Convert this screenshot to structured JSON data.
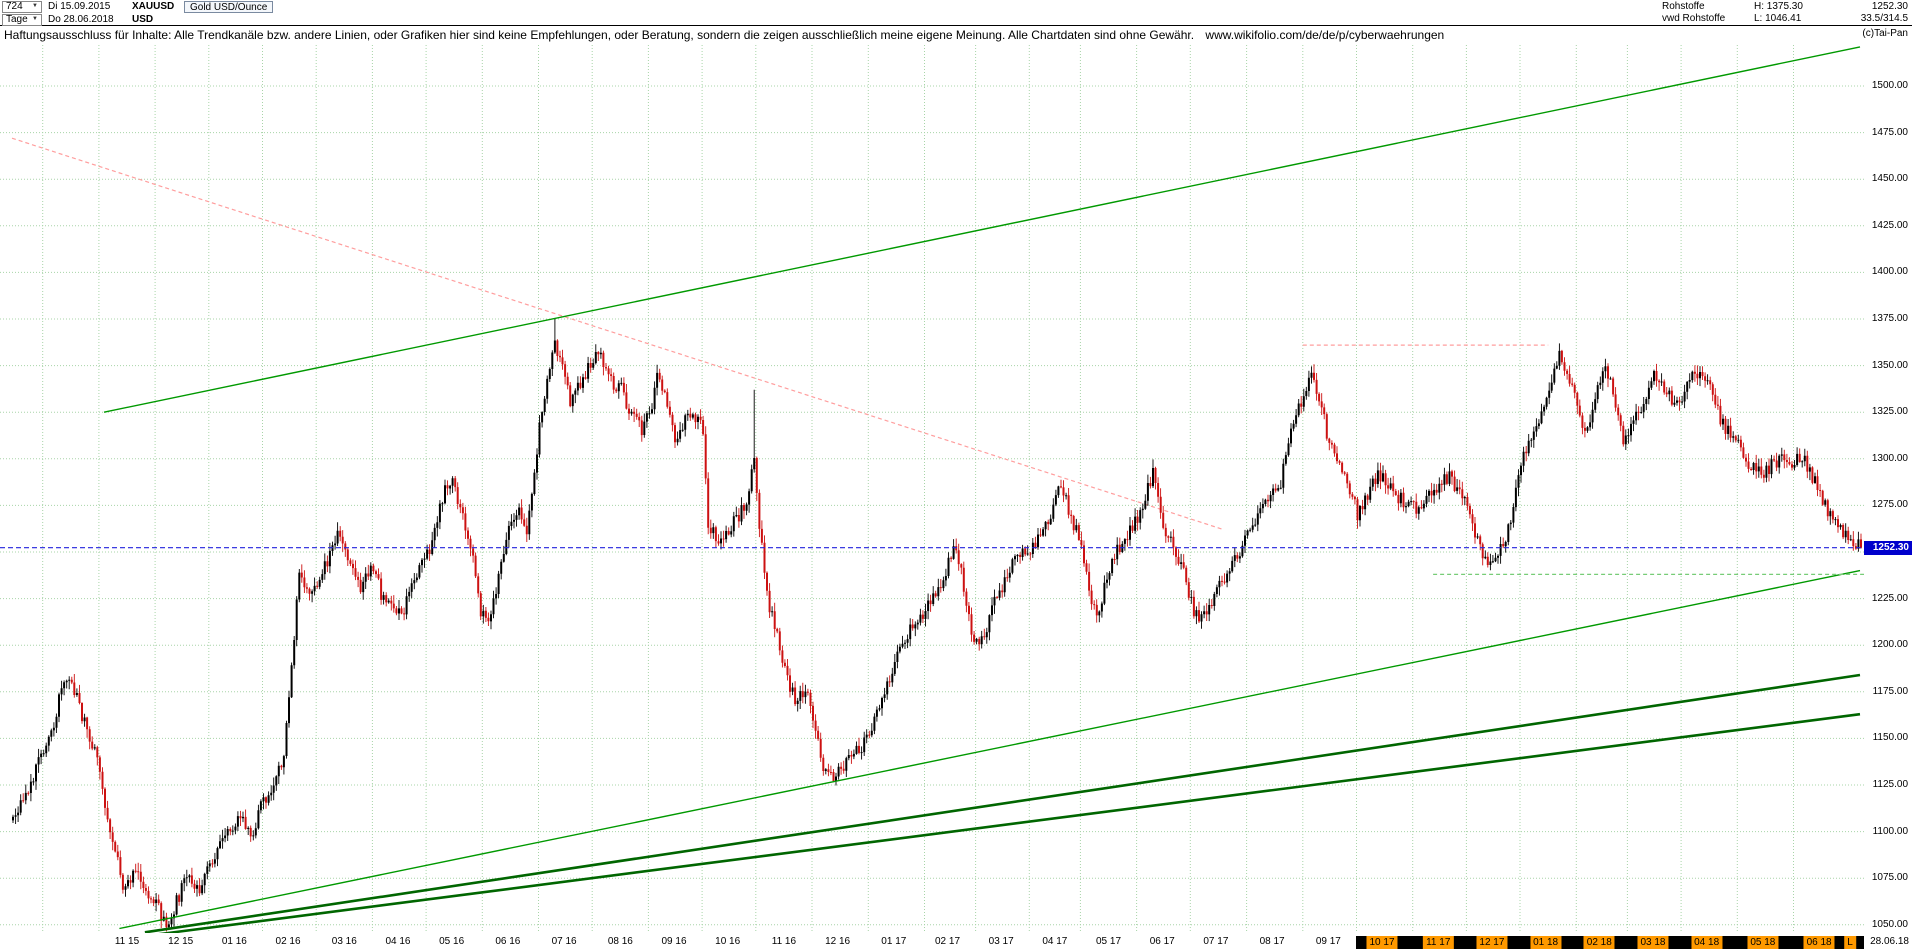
{
  "toolbar": {
    "bars_count": "724",
    "start_date": "Di 15.09.2015",
    "timeframe": "Tage",
    "end_date": "Do 28.06.2018",
    "symbol": "XAUUSD",
    "currency": "USD",
    "instrument_name": "Gold USD/Ounce"
  },
  "info": {
    "category": "Rohstoffe",
    "provider": "vwd Rohstoffe",
    "high_label": "H: 1375.30",
    "low_label": "L: 1046.41",
    "last": "1252.30",
    "stats": "33.5/314.5",
    "copyright": "(c)Tai-Pan"
  },
  "disclaimer": {
    "text": "Haftungsausschluss für Inhalte: Alle Trendkanäle bzw. andere Linien, oder Grafiken hier sind keine Empfehlungen, oder Beratung, sondern die zeigen ausschließlich meine eigene Meinung. Alle Chartdaten sind ohne Gewähr.",
    "url": "www.wikifolio.com/de/de/p/cyberwaehrungen"
  },
  "chart_data": {
    "type": "candlestick",
    "title": "Gold USD/Ounce (XAUUSD)",
    "period": {
      "bars": 724,
      "from": "15.09.2015",
      "to": "28.06.2018",
      "timeframe": "Tage"
    },
    "high": 1375.3,
    "low": 1046.41,
    "last": 1252.3,
    "last_label": "1252.30",
    "y_axis": {
      "min": 1050,
      "max": 1500,
      "step": 25,
      "ticks": [
        [
          1500,
          "1500.00",
          1
        ],
        [
          1475,
          "1475.00",
          1
        ],
        [
          1450,
          "1450.00",
          1
        ],
        [
          1425,
          "1425.00",
          1
        ],
        [
          1400,
          "1400.00",
          1
        ],
        [
          1375,
          "1375.00",
          1
        ],
        [
          1350,
          "1350.00",
          1
        ],
        [
          1325,
          "1325.00",
          1
        ],
        [
          1300,
          "1300.00",
          1
        ],
        [
          1275,
          "1275.00",
          1
        ],
        [
          1250,
          "1250.00",
          0
        ],
        [
          1225,
          "1225.00",
          1
        ],
        [
          1200,
          "1200.00",
          1
        ],
        [
          1175,
          "1175.00",
          1
        ],
        [
          1150,
          "1150.00",
          1
        ],
        [
          1125,
          "1125.00",
          1
        ],
        [
          1100,
          "1100.00",
          1
        ],
        [
          1075,
          "1075.00",
          1
        ],
        [
          1050,
          "1050.00",
          1
        ]
      ]
    },
    "x_axis": {
      "labels": [
        [
          "11 15",
          45,
          0
        ],
        [
          "12 15",
          66,
          0
        ],
        [
          "01 16",
          87,
          0
        ],
        [
          "02 16",
          108,
          0
        ],
        [
          "03 16",
          130,
          0
        ],
        [
          "04 16",
          151,
          0
        ],
        [
          "05 16",
          172,
          0
        ],
        [
          "06 16",
          194,
          0
        ],
        [
          "07 16",
          216,
          0
        ],
        [
          "08 16",
          238,
          0
        ],
        [
          "09 16",
          259,
          0
        ],
        [
          "10 16",
          280,
          0
        ],
        [
          "11 16",
          302,
          0
        ],
        [
          "12 16",
          323,
          0
        ],
        [
          "01 17",
          345,
          0
        ],
        [
          "02 17",
          366,
          0
        ],
        [
          "03 17",
          387,
          0
        ],
        [
          "04 17",
          408,
          0
        ],
        [
          "05 17",
          429,
          0
        ],
        [
          "06 17",
          450,
          0
        ],
        [
          "07 17",
          471,
          0
        ],
        [
          "08 17",
          493,
          0
        ],
        [
          "09 17",
          515,
          0
        ],
        [
          "10 17",
          536,
          1
        ],
        [
          "11 17",
          558,
          1
        ],
        [
          "12 17",
          579,
          1
        ],
        [
          "01 18",
          600,
          1
        ],
        [
          "02 18",
          621,
          1
        ],
        [
          "03 18",
          642,
          1
        ],
        [
          "04 18",
          663,
          1
        ],
        [
          "05 18",
          685,
          1
        ],
        [
          "06 18",
          707,
          1
        ]
      ],
      "end_marker": "L",
      "corner_date": "28.06.18"
    },
    "month_boundaries": [
      12,
      34,
      56,
      77,
      98,
      119,
      141,
      162,
      184,
      206,
      227,
      249,
      270,
      291,
      313,
      335,
      357,
      377,
      398,
      418,
      440,
      461,
      483,
      505,
      526,
      548,
      569,
      590,
      612,
      632,
      653,
      675,
      697
    ],
    "anchors": [
      [
        0,
        1108
      ],
      [
        8,
        1130
      ],
      [
        14,
        1148
      ],
      [
        18,
        1170
      ],
      [
        22,
        1184
      ],
      [
        27,
        1162
      ],
      [
        32,
        1145
      ],
      [
        38,
        1098
      ],
      [
        43,
        1072
      ],
      [
        48,
        1078
      ],
      [
        53,
        1068
      ],
      [
        57,
        1058
      ],
      [
        60,
        1048
      ],
      [
        64,
        1062
      ],
      [
        68,
        1076
      ],
      [
        73,
        1070
      ],
      [
        77,
        1083
      ],
      [
        82,
        1094
      ],
      [
        88,
        1108
      ],
      [
        93,
        1098
      ],
      [
        98,
        1116
      ],
      [
        103,
        1127
      ],
      [
        106,
        1142
      ],
      [
        109,
        1190
      ],
      [
        112,
        1240
      ],
      [
        116,
        1226
      ],
      [
        120,
        1236
      ],
      [
        125,
        1250
      ],
      [
        128,
        1262
      ],
      [
        132,
        1240
      ],
      [
        136,
        1230
      ],
      [
        140,
        1244
      ],
      [
        144,
        1228
      ],
      [
        148,
        1221
      ],
      [
        152,
        1217
      ],
      [
        156,
        1230
      ],
      [
        160,
        1242
      ],
      [
        164,
        1256
      ],
      [
        168,
        1280
      ],
      [
        172,
        1289
      ],
      [
        176,
        1270
      ],
      [
        180,
        1250
      ],
      [
        183,
        1216
      ],
      [
        186,
        1212
      ],
      [
        190,
        1235
      ],
      [
        194,
        1262
      ],
      [
        198,
        1276
      ],
      [
        201,
        1260
      ],
      [
        204,
        1290
      ],
      [
        206,
        1318
      ],
      [
        209,
        1341
      ],
      [
        212,
        1362
      ],
      [
        215,
        1347
      ],
      [
        218,
        1331
      ],
      [
        222,
        1342
      ],
      [
        226,
        1351
      ],
      [
        230,
        1356
      ],
      [
        234,
        1341
      ],
      [
        238,
        1337
      ],
      [
        242,
        1323
      ],
      [
        246,
        1316
      ],
      [
        250,
        1326
      ],
      [
        252,
        1344
      ],
      [
        256,
        1330
      ],
      [
        259,
        1311
      ],
      [
        263,
        1321
      ],
      [
        266,
        1326
      ],
      [
        270,
        1314
      ],
      [
        272,
        1266
      ],
      [
        276,
        1255
      ],
      [
        280,
        1261
      ],
      [
        284,
        1270
      ],
      [
        287,
        1277
      ],
      [
        290,
        1298
      ],
      [
        292,
        1266
      ],
      [
        295,
        1226
      ],
      [
        298,
        1212
      ],
      [
        302,
        1186
      ],
      [
        306,
        1171
      ],
      [
        310,
        1176
      ],
      [
        313,
        1160
      ],
      [
        317,
        1136
      ],
      [
        320,
        1128
      ],
      [
        324,
        1133
      ],
      [
        328,
        1139
      ],
      [
        332,
        1145
      ],
      [
        335,
        1155
      ],
      [
        339,
        1165
      ],
      [
        343,
        1183
      ],
      [
        347,
        1201
      ],
      [
        351,
        1209
      ],
      [
        356,
        1215
      ],
      [
        360,
        1227
      ],
      [
        364,
        1235
      ],
      [
        368,
        1251
      ],
      [
        371,
        1239
      ],
      [
        375,
        1205
      ],
      [
        379,
        1201
      ],
      [
        383,
        1219
      ],
      [
        387,
        1231
      ],
      [
        391,
        1243
      ],
      [
        395,
        1251
      ],
      [
        399,
        1253
      ],
      [
        403,
        1261
      ],
      [
        407,
        1275
      ],
      [
        410,
        1286
      ],
      [
        414,
        1267
      ],
      [
        418,
        1255
      ],
      [
        421,
        1227
      ],
      [
        424,
        1217
      ],
      [
        428,
        1235
      ],
      [
        432,
        1251
      ],
      [
        436,
        1259
      ],
      [
        440,
        1267
      ],
      [
        443,
        1281
      ],
      [
        446,
        1292
      ],
      [
        450,
        1265
      ],
      [
        454,
        1253
      ],
      [
        458,
        1241
      ],
      [
        461,
        1223
      ],
      [
        464,
        1211
      ],
      [
        468,
        1221
      ],
      [
        472,
        1233
      ],
      [
        476,
        1239
      ],
      [
        480,
        1251
      ],
      [
        484,
        1261
      ],
      [
        488,
        1271
      ],
      [
        492,
        1281
      ],
      [
        496,
        1287
      ],
      [
        500,
        1317
      ],
      [
        504,
        1329
      ],
      [
        508,
        1347
      ],
      [
        511,
        1333
      ],
      [
        515,
        1307
      ],
      [
        519,
        1297
      ],
      [
        523,
        1283
      ],
      [
        526,
        1271
      ],
      [
        530,
        1281
      ],
      [
        534,
        1291
      ],
      [
        538,
        1287
      ],
      [
        542,
        1279
      ],
      [
        546,
        1275
      ],
      [
        550,
        1271
      ],
      [
        554,
        1279
      ],
      [
        558,
        1287
      ],
      [
        562,
        1291
      ],
      [
        566,
        1281
      ],
      [
        569,
        1275
      ],
      [
        573,
        1255
      ],
      [
        577,
        1241
      ],
      [
        581,
        1249
      ],
      [
        585,
        1261
      ],
      [
        589,
        1291
      ],
      [
        593,
        1311
      ],
      [
        597,
        1319
      ],
      [
        601,
        1337
      ],
      [
        605,
        1356
      ],
      [
        609,
        1341
      ],
      [
        613,
        1323
      ],
      [
        616,
        1315
      ],
      [
        620,
        1341
      ],
      [
        623,
        1351
      ],
      [
        627,
        1329
      ],
      [
        630,
        1307
      ],
      [
        634,
        1319
      ],
      [
        638,
        1329
      ],
      [
        642,
        1347
      ],
      [
        646,
        1337
      ],
      [
        650,
        1329
      ],
      [
        653,
        1333
      ],
      [
        657,
        1343
      ],
      [
        661,
        1347
      ],
      [
        665,
        1333
      ],
      [
        668,
        1321
      ],
      [
        672,
        1313
      ],
      [
        676,
        1307
      ],
      [
        680,
        1295
      ],
      [
        684,
        1291
      ],
      [
        688,
        1297
      ],
      [
        692,
        1299
      ],
      [
        696,
        1297
      ],
      [
        700,
        1301
      ],
      [
        704,
        1291
      ],
      [
        708,
        1279
      ],
      [
        712,
        1267
      ],
      [
        716,
        1261
      ],
      [
        720,
        1256
      ],
      [
        723,
        1252.3
      ]
    ],
    "special_bars": {
      "high_bar": 212,
      "low_bar": 60,
      "spike_bar": 290,
      "spike_high": 1337
    },
    "trend_lines": [
      {
        "name": "descending-resistance-dashed",
        "layer": "below",
        "from": [
          0,
          1472
        ],
        "to": [
          474,
          1262
        ],
        "color": "#ff9e9e",
        "width": 1.2,
        "dash": "4 3"
      },
      {
        "name": "horizontal-resistance-dashed",
        "layer": "below",
        "from": [
          505,
          1361
        ],
        "to": [
          601,
          1361
        ],
        "color": "#ff9e9e",
        "width": 1.2,
        "dash": "4 3"
      },
      {
        "name": "ascending-resistance-line",
        "layer": "above",
        "from": [
          36,
          1325
        ],
        "to": [
          723,
          1521
        ],
        "color": "#009900",
        "width": 1.4,
        "dash": null
      },
      {
        "name": "ascending-support-line",
        "layer": "above",
        "from": [
          42,
          1048
        ],
        "to": [
          723,
          1240
        ],
        "color": "#009900",
        "width": 1.4,
        "dash": null
      },
      {
        "name": "lower-trend-fan-line-1",
        "layer": "above",
        "from": [
          52,
          1046
        ],
        "to": [
          723,
          1184
        ],
        "color": "#006600",
        "width": 2.6,
        "dash": null
      },
      {
        "name": "lower-trend-fan-line-2",
        "layer": "above",
        "from": [
          52,
          1044
        ],
        "to": [
          723,
          1163
        ],
        "color": "#006600",
        "width": 2.6,
        "dash": null
      },
      {
        "name": "recent-support-dashed",
        "layer": "above",
        "from": [
          556,
          1238
        ],
        "to": [
          724.6,
          1238
        ],
        "color": "#77cc77",
        "width": 1.2,
        "dash": "4 3"
      },
      {
        "name": "current-price-line",
        "layer": "above",
        "from": [
          -4.7,
          1252.3
        ],
        "to": [
          724.6,
          1252.3
        ],
        "color": "#2222dd",
        "width": 1.2,
        "dash": "5 3"
      }
    ],
    "colors": {
      "up": "#000000",
      "down": "#cc1111",
      "grid": "#a8d4a8",
      "badge_bg": "#0000cc",
      "highlight_orange": "#ff9900",
      "background": "#ffffff"
    }
  }
}
